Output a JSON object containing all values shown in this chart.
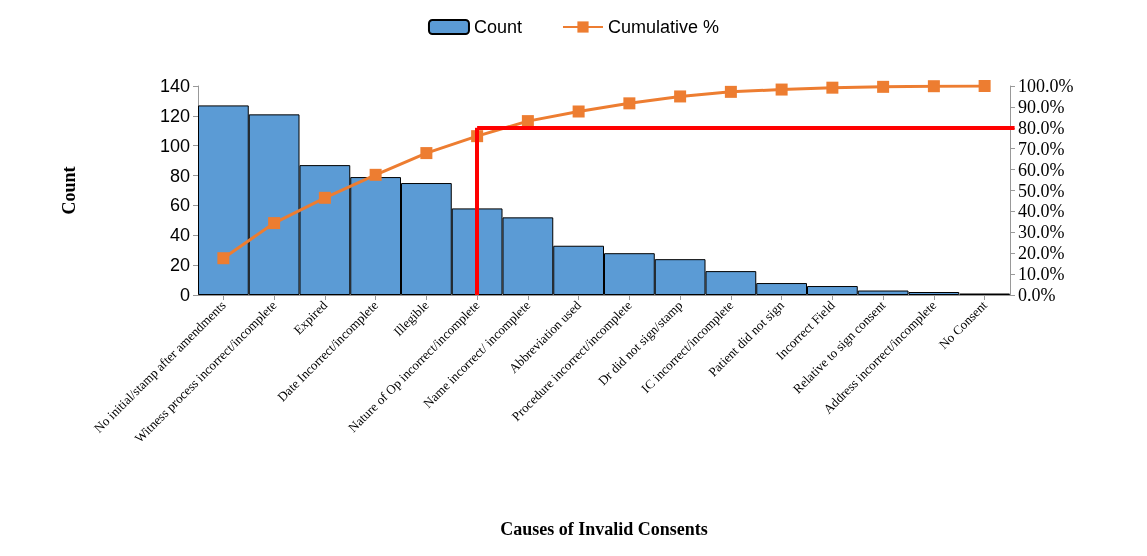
{
  "chart_data": {
    "type": "bar",
    "xlabel": "Causes of Invalid Consents",
    "ylabel": "Count",
    "categories": [
      "No initial/stamp after amendments",
      "Witness process incorrect/incomplete",
      "Expired",
      "Date Incorrect/incomplete",
      "Illegible",
      "Nature of Op incorrect/incomplete",
      "Name incorrect/ incomplete",
      "Abbreviation used",
      "Procedure incorrect/incomplete",
      "Dr did not sign/stamp",
      "IC incorrect/incomplete",
      "Patient did not sign",
      "Incorrect Field",
      "Relative to sign consent",
      "Address incorrect/incomplete",
      "No Consent"
    ],
    "series": [
      {
        "name": "Count",
        "color": "#5b9bd5",
        "values": [
          127,
          121,
          87,
          79,
          75,
          58,
          52,
          33,
          28,
          24,
          16,
          8,
          6,
          3,
          2,
          1
        ]
      },
      {
        "name": "Cumulative %",
        "type": "line",
        "axis": "y2",
        "color": "#ed7d31",
        "values": [
          17.6,
          34.4,
          46.5,
          57.5,
          67.9,
          76.0,
          83.2,
          87.8,
          91.7,
          95.0,
          97.2,
          98.3,
          99.2,
          99.6,
          99.9,
          100.0
        ]
      }
    ],
    "ylim": [
      0,
      140
    ],
    "yticks": [
      0,
      20,
      40,
      60,
      80,
      100,
      120,
      140
    ],
    "y2lim": [
      0,
      100
    ],
    "y2ticks": [
      {
        "value": 0,
        "label": "0.0%"
      },
      {
        "value": 10,
        "label": "10.0%"
      },
      {
        "value": 20,
        "label": "20.0%"
      },
      {
        "value": 30,
        "label": "30.0%"
      },
      {
        "value": 40,
        "label": "40.0%"
      },
      {
        "value": 50,
        "label": "50.0%"
      },
      {
        "value": 60,
        "label": "60.0%"
      },
      {
        "value": 70,
        "label": "70.0%"
      },
      {
        "value": 80,
        "label": "80.0%"
      },
      {
        "value": 90,
        "label": "90.0%"
      },
      {
        "value": 100,
        "label": "100.0%"
      }
    ],
    "ref_lines": [
      {
        "axis": "y2",
        "value": 80,
        "color": "#ff0000"
      },
      {
        "axis": "x",
        "value": "Nature of Op incorrect/incomplete",
        "color": "#ff0000"
      }
    ],
    "legend": "top",
    "marker": "square",
    "grid": false
  }
}
